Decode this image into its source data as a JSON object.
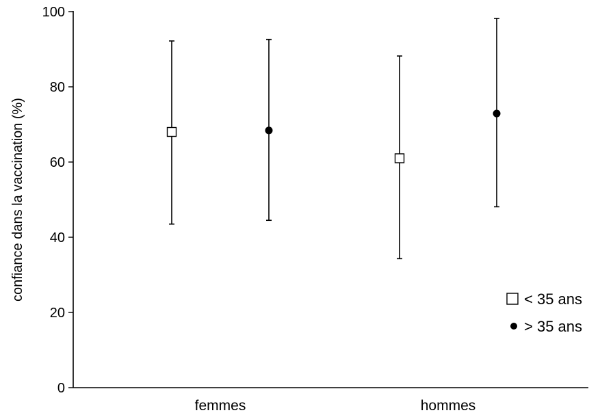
{
  "chart_data": {
    "type": "scatter",
    "ylabel": "confiance dans la vaccination (%)",
    "xlabel": "",
    "ylim": [
      0,
      100
    ],
    "yticks": [
      0,
      20,
      40,
      60,
      80,
      100
    ],
    "categories": [
      "femmes",
      "hommes"
    ],
    "series": [
      {
        "name": "< 35 ans",
        "marker": "open-square",
        "values": [
          68,
          61
        ],
        "err_low": [
          43.5,
          34.3
        ],
        "err_high": [
          92.2,
          88.2
        ]
      },
      {
        "name": "> 35 ans",
        "marker": "filled-circle",
        "values": [
          68.4,
          72.9
        ],
        "err_low": [
          44.5,
          48.1
        ],
        "err_high": [
          92.6,
          98.2
        ]
      }
    ],
    "legend": {
      "position": "right",
      "entries": [
        {
          "symbol": "□",
          "label": "< 35 ans"
        },
        {
          "symbol": "●",
          "label": "> 35 ans"
        }
      ]
    },
    "grid": false
  }
}
